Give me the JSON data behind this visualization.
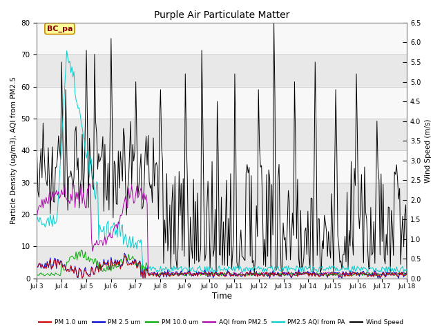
{
  "title": "Purple Air Particulate Matter",
  "xlabel": "Time",
  "ylabel_left": "Particle Density (ug/m3), AQI from PM2.5",
  "ylabel_right": "Wind Speed (m/s)",
  "ylim_left": [
    0,
    80
  ],
  "ylim_right": [
    0,
    6.5
  ],
  "yticks_left": [
    0,
    10,
    20,
    30,
    40,
    50,
    60,
    70,
    80
  ],
  "yticks_right": [
    0.0,
    0.5,
    1.0,
    1.5,
    2.0,
    2.5,
    3.0,
    3.5,
    4.0,
    4.5,
    5.0,
    5.5,
    6.0,
    6.5
  ],
  "xtick_labels": [
    "Jul 3",
    "Jul 4",
    "Jul 5",
    "Jul 6",
    "Jul 7",
    "Jul 8",
    "Jul 9",
    "Jul 10",
    "Jul 11",
    "Jul 12",
    "Jul 13",
    "Jul 14",
    "Jul 15",
    "Jul 16",
    "Jul 17",
    "Jul 18"
  ],
  "annotation_text": "BC_pa",
  "annotation_box_facecolor": "#FFFF99",
  "annotation_box_edgecolor": "#CC8800",
  "colors": {
    "pm1": "#CC0000",
    "pm25": "#0000CC",
    "pm10": "#00AA00",
    "aqi_pm25": "#AA00AA",
    "aqi_pa": "#00CCCC",
    "wind": "#000000"
  },
  "legend_labels": [
    "PM 1.0 um",
    "PM 2.5 um",
    "PM 10.0 um",
    "AQI from PM2.5",
    "PM2.5 AQI from PA",
    "Wind Speed"
  ],
  "band_colors": [
    "#E8E8E8",
    "#F8F8F8"
  ],
  "band_boundaries": [
    0,
    10,
    20,
    30,
    40,
    50,
    60,
    70,
    80
  ]
}
